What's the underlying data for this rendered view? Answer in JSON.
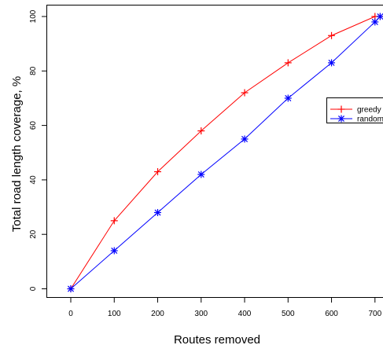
{
  "chart_data": {
    "type": "line",
    "xlabel": "Routes removed",
    "ylabel": "Total road length coverage, %",
    "xlim": [
      -10,
      712
    ],
    "ylim": [
      -4,
      100.5
    ],
    "x_ticks": [
      "0",
      "100",
      "200",
      "300",
      "400",
      "500",
      "600",
      "700"
    ],
    "y_ticks": [
      "0",
      "20",
      "40",
      "60",
      "80",
      "100"
    ],
    "legend_position": "right",
    "series": [
      {
        "name": "greedy",
        "color": "#ff0000",
        "marker": "plus",
        "x": [
          0,
          100,
          200,
          300,
          400,
          500,
          600,
          700,
          712
        ],
        "y": [
          0,
          25,
          43,
          58,
          72,
          83,
          93,
          100,
          100
        ]
      },
      {
        "name": "random",
        "color": "#0000ff",
        "marker": "asterisk",
        "x": [
          0,
          100,
          200,
          300,
          400,
          500,
          600,
          700,
          712
        ],
        "y": [
          0,
          14,
          28,
          42,
          55,
          70,
          83,
          98,
          100
        ]
      }
    ]
  }
}
